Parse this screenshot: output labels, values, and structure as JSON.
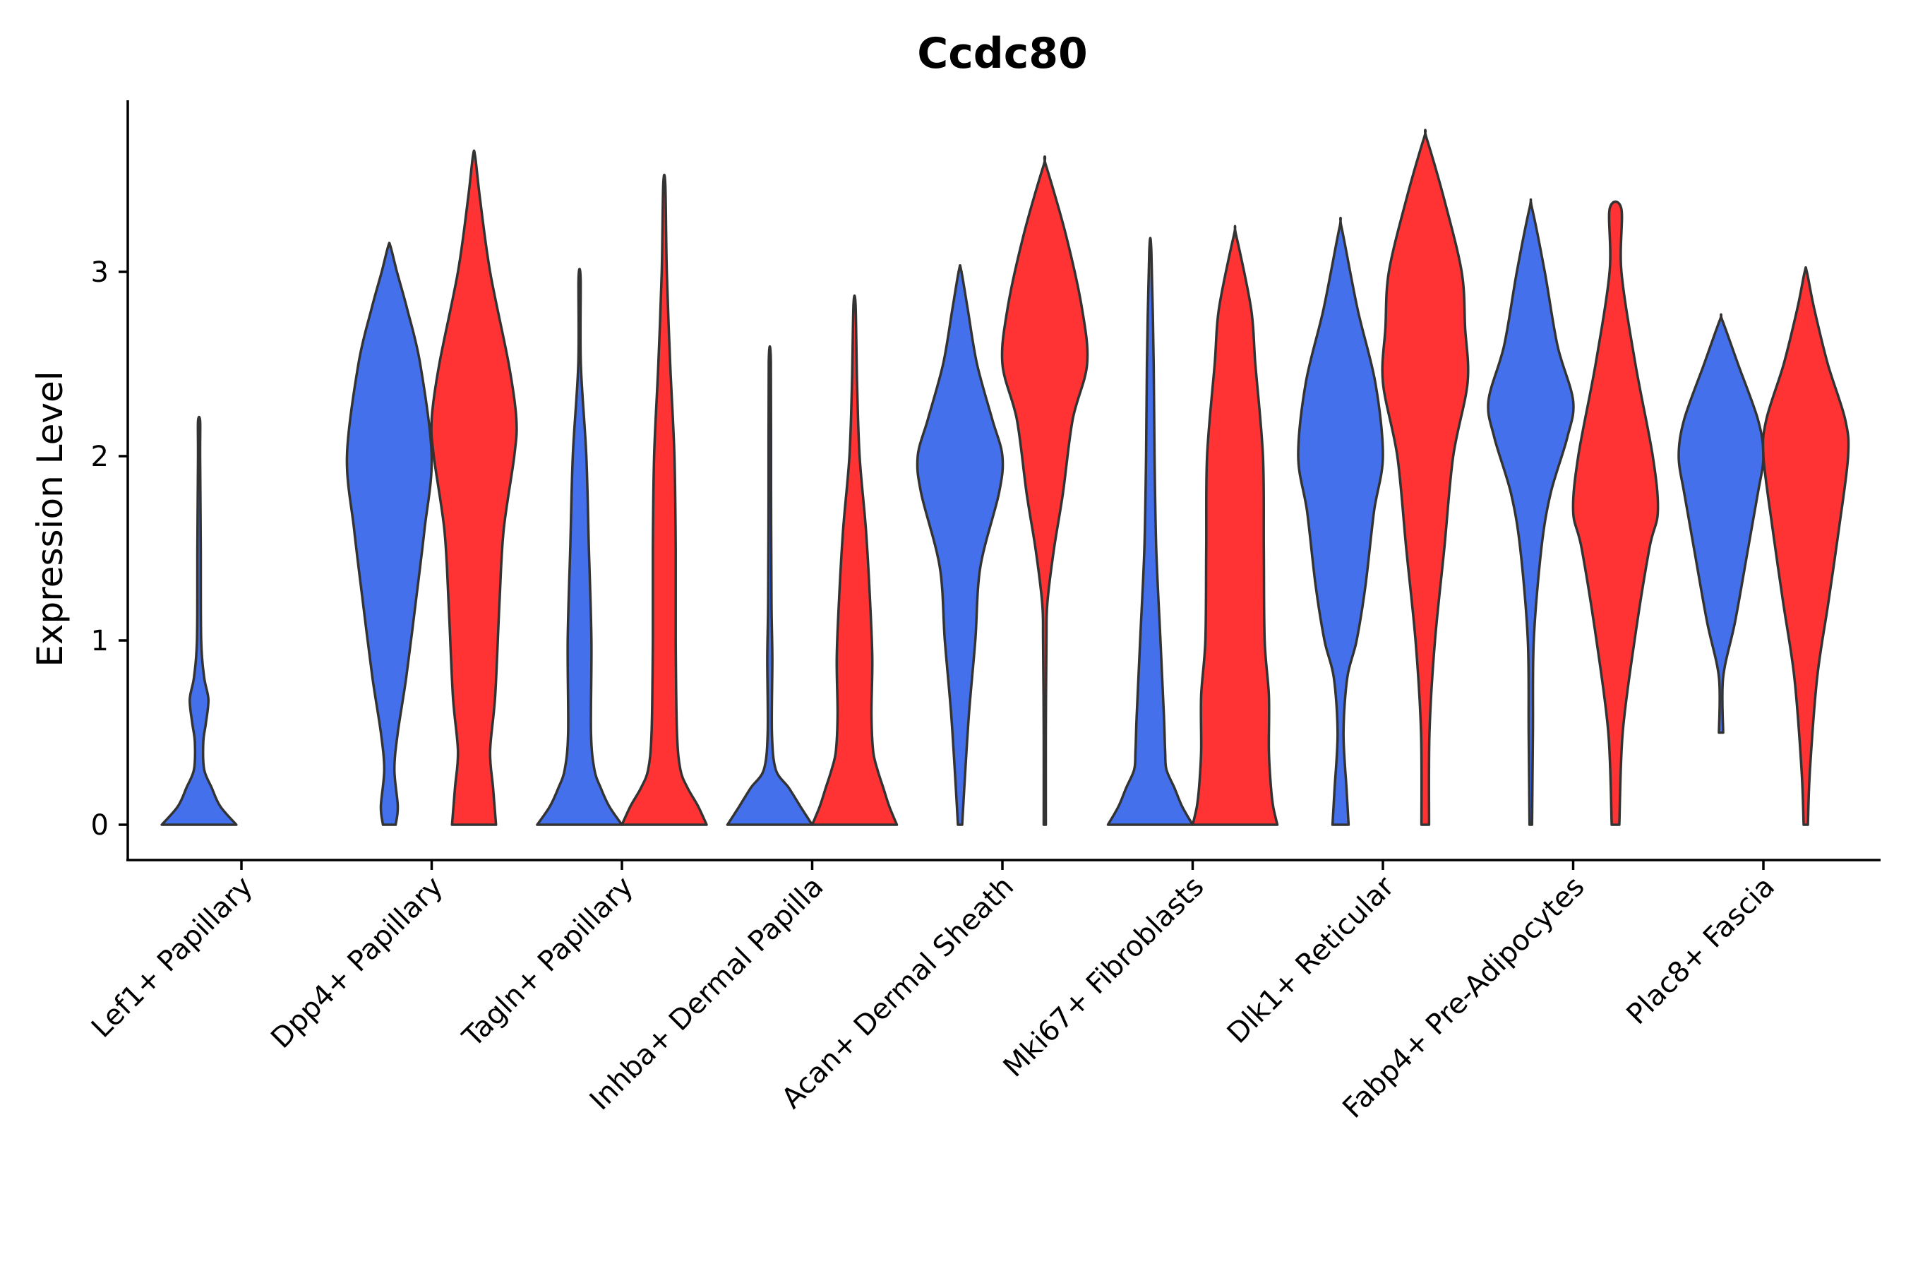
{
  "chart_data": {
    "type": "violin",
    "title": "Ccdc80",
    "ylabel": "Expression Level",
    "xlabel": "",
    "ylim": [
      -0.19,
      3.9
    ],
    "yticks": [
      0,
      1,
      2,
      3
    ],
    "colors": {
      "group1": "#4570EB",
      "group2": "#FF3333",
      "outline": "#333333"
    },
    "categories": [
      "Lef1+ Papillary",
      "Dpp4+ Papillary",
      "Tagln+ Papillary",
      "Inhba+ Dermal Papilla",
      "Acan+ Dermal Sheath",
      "Mki67+ Fibroblasts",
      "Dlk1+ Reticular",
      "Fabp4+ Pre-Adipocytes",
      "Plac8+ Fascia"
    ],
    "violins": [
      {
        "category": "Lef1+ Papillary",
        "group": "group1",
        "min": 0,
        "max": 2.19,
        "profile": [
          [
            0,
            0.88
          ],
          [
            0.1,
            0.5
          ],
          [
            0.2,
            0.3
          ],
          [
            0.3,
            0.12
          ],
          [
            0.45,
            0.1
          ],
          [
            0.55,
            0.16
          ],
          [
            0.68,
            0.22
          ],
          [
            0.8,
            0.12
          ],
          [
            1.0,
            0.05
          ],
          [
            1.5,
            0.04
          ],
          [
            2.0,
            0.015
          ],
          [
            2.19,
            0
          ]
        ]
      },
      {
        "category": "Dpp4+ Papillary",
        "group": "group1",
        "min": 0,
        "max": 3.14,
        "profile": [
          [
            0,
            0.15
          ],
          [
            0.1,
            0.2
          ],
          [
            0.3,
            0.12
          ],
          [
            0.5,
            0.2
          ],
          [
            0.8,
            0.4
          ],
          [
            1.2,
            0.62
          ],
          [
            1.6,
            0.83
          ],
          [
            2.0,
            1.0
          ],
          [
            2.5,
            0.73
          ],
          [
            2.8,
            0.42
          ],
          [
            3.0,
            0.18
          ],
          [
            3.14,
            0
          ]
        ]
      },
      {
        "category": "Dpp4+ Papillary",
        "group": "group2",
        "min": 0,
        "max": 3.63,
        "profile": [
          [
            0,
            0.52
          ],
          [
            0.2,
            0.45
          ],
          [
            0.4,
            0.38
          ],
          [
            0.7,
            0.5
          ],
          [
            1.2,
            0.6
          ],
          [
            1.6,
            0.7
          ],
          [
            2.0,
            0.95
          ],
          [
            2.2,
            1.0
          ],
          [
            2.5,
            0.82
          ],
          [
            3.0,
            0.38
          ],
          [
            3.4,
            0.14
          ],
          [
            3.63,
            0
          ]
        ]
      },
      {
        "category": "Tagln+ Papillary",
        "group": "group1",
        "min": 0,
        "max": 2.96,
        "profile": [
          [
            0,
            1.0
          ],
          [
            0.1,
            0.7
          ],
          [
            0.2,
            0.5
          ],
          [
            0.3,
            0.35
          ],
          [
            0.5,
            0.27
          ],
          [
            1.0,
            0.28
          ],
          [
            1.5,
            0.22
          ],
          [
            2.0,
            0.16
          ],
          [
            2.5,
            0.03
          ],
          [
            2.96,
            0
          ]
        ]
      },
      {
        "category": "Tagln+ Papillary",
        "group": "group2",
        "min": 0,
        "max": 3.47,
        "profile": [
          [
            0,
            1.0
          ],
          [
            0.1,
            0.8
          ],
          [
            0.2,
            0.55
          ],
          [
            0.3,
            0.38
          ],
          [
            0.5,
            0.3
          ],
          [
            1.0,
            0.27
          ],
          [
            1.5,
            0.27
          ],
          [
            2.0,
            0.24
          ],
          [
            2.5,
            0.14
          ],
          [
            3.0,
            0.06
          ],
          [
            3.47,
            0
          ]
        ]
      },
      {
        "category": "Inhba+ Dermal Papilla",
        "group": "group1",
        "min": 0,
        "max": 2.51,
        "profile": [
          [
            0,
            1.0
          ],
          [
            0.1,
            0.72
          ],
          [
            0.2,
            0.45
          ],
          [
            0.3,
            0.14
          ],
          [
            0.5,
            0.05
          ],
          [
            0.9,
            0.06
          ],
          [
            1.2,
            0.04
          ],
          [
            1.8,
            0.03
          ],
          [
            2.51,
            0
          ]
        ]
      },
      {
        "category": "Inhba+ Dermal Papilla",
        "group": "group2",
        "min": 0,
        "max": 2.82,
        "profile": [
          [
            0,
            1.0
          ],
          [
            0.1,
            0.82
          ],
          [
            0.2,
            0.68
          ],
          [
            0.3,
            0.54
          ],
          [
            0.4,
            0.44
          ],
          [
            0.6,
            0.4
          ],
          [
            0.9,
            0.42
          ],
          [
            1.2,
            0.37
          ],
          [
            1.6,
            0.27
          ],
          [
            2.0,
            0.12
          ],
          [
            2.4,
            0.06
          ],
          [
            2.82,
            0
          ]
        ]
      },
      {
        "category": "Acan+ Dermal Sheath",
        "group": "group1",
        "min": 0,
        "max": 3.01,
        "profile": [
          [
            0,
            0.05
          ],
          [
            0.2,
            0.1
          ],
          [
            0.6,
            0.21
          ],
          [
            1.0,
            0.36
          ],
          [
            1.4,
            0.48
          ],
          [
            1.8,
            0.92
          ],
          [
            2.0,
            1.0
          ],
          [
            2.2,
            0.76
          ],
          [
            2.5,
            0.4
          ],
          [
            2.8,
            0.18
          ],
          [
            3.01,
            0
          ]
        ]
      },
      {
        "category": "Acan+ Dermal Sheath",
        "group": "group2",
        "min": 0,
        "max": 3.58,
        "profile": [
          [
            0,
            0.02
          ],
          [
            0.5,
            0.02
          ],
          [
            1.0,
            0.04
          ],
          [
            1.2,
            0.06
          ],
          [
            1.5,
            0.22
          ],
          [
            1.8,
            0.43
          ],
          [
            2.2,
            0.66
          ],
          [
            2.5,
            1.0
          ],
          [
            2.8,
            0.88
          ],
          [
            3.2,
            0.5
          ],
          [
            3.58,
            0
          ]
        ]
      },
      {
        "category": "Mki67+ Fibroblasts",
        "group": "group1",
        "min": 0,
        "max": 3.11,
        "profile": [
          [
            0,
            1.0
          ],
          [
            0.1,
            0.75
          ],
          [
            0.2,
            0.57
          ],
          [
            0.3,
            0.38
          ],
          [
            0.4,
            0.35
          ],
          [
            0.6,
            0.32
          ],
          [
            1.0,
            0.24
          ],
          [
            1.5,
            0.14
          ],
          [
            2.0,
            0.1
          ],
          [
            2.5,
            0.08
          ],
          [
            3.11,
            0
          ]
        ]
      },
      {
        "category": "Mki67+ Fibroblasts",
        "group": "group2",
        "min": 0,
        "max": 3.2,
        "profile": [
          [
            0,
            1.0
          ],
          [
            0.1,
            0.9
          ],
          [
            0.2,
            0.85
          ],
          [
            0.4,
            0.8
          ],
          [
            0.7,
            0.8
          ],
          [
            1.0,
            0.7
          ],
          [
            1.5,
            0.68
          ],
          [
            2.0,
            0.66
          ],
          [
            2.5,
            0.48
          ],
          [
            2.8,
            0.38
          ],
          [
            3.2,
            0
          ]
        ]
      },
      {
        "category": "Dlk1+ Reticular",
        "group": "group1",
        "min": 0,
        "max": 3.24,
        "profile": [
          [
            0,
            0.19
          ],
          [
            0.2,
            0.14
          ],
          [
            0.5,
            0.07
          ],
          [
            0.8,
            0.16
          ],
          [
            1.0,
            0.38
          ],
          [
            1.3,
            0.59
          ],
          [
            1.7,
            0.79
          ],
          [
            2.0,
            1.0
          ],
          [
            2.4,
            0.82
          ],
          [
            2.8,
            0.4
          ],
          [
            3.24,
            0
          ]
        ]
      },
      {
        "category": "Dlk1+ Reticular",
        "group": "group2",
        "min": 0,
        "max": 3.73,
        "profile": [
          [
            0,
            0.09
          ],
          [
            0.5,
            0.1
          ],
          [
            1.0,
            0.23
          ],
          [
            1.5,
            0.45
          ],
          [
            2.0,
            0.66
          ],
          [
            2.4,
            1.0
          ],
          [
            2.7,
            0.94
          ],
          [
            3.0,
            0.86
          ],
          [
            3.4,
            0.44
          ],
          [
            3.73,
            0
          ]
        ]
      },
      {
        "category": "Fabp4+ Pre-Adipocytes",
        "group": "group1",
        "min": 0,
        "max": 3.35,
        "profile": [
          [
            0,
            0.03
          ],
          [
            0.5,
            0.05
          ],
          [
            1.0,
            0.07
          ],
          [
            1.5,
            0.25
          ],
          [
            1.8,
            0.47
          ],
          [
            2.1,
            0.86
          ],
          [
            2.3,
            1.0
          ],
          [
            2.6,
            0.63
          ],
          [
            3.0,
            0.33
          ],
          [
            3.35,
            0
          ]
        ]
      },
      {
        "category": "Fabp4+ Pre-Adipocytes",
        "group": "group2",
        "min": 0,
        "max": 3.34,
        "profile": [
          [
            0,
            0.09
          ],
          [
            0.5,
            0.17
          ],
          [
            1.0,
            0.45
          ],
          [
            1.5,
            0.8
          ],
          [
            1.7,
            1.0
          ],
          [
            2.0,
            0.88
          ],
          [
            2.5,
            0.47
          ],
          [
            3.0,
            0.14
          ],
          [
            3.34,
            0.14
          ]
        ]
      },
      {
        "category": "Plac8+ Fascia",
        "group": "group1",
        "min": 0.5,
        "max": 2.74,
        "profile": [
          [
            0.5,
            0.05
          ],
          [
            0.8,
            0.05
          ],
          [
            1.1,
            0.33
          ],
          [
            1.5,
            0.64
          ],
          [
            1.8,
            0.87
          ],
          [
            2.0,
            1.0
          ],
          [
            2.2,
            0.87
          ],
          [
            2.5,
            0.4
          ],
          [
            2.74,
            0
          ]
        ]
      },
      {
        "category": "Plac8+ Fascia",
        "group": "group2",
        "min": 0,
        "max": 3.0,
        "profile": [
          [
            0,
            0.05
          ],
          [
            0.3,
            0.1
          ],
          [
            0.8,
            0.27
          ],
          [
            1.2,
            0.53
          ],
          [
            1.6,
            0.78
          ],
          [
            2.0,
            1.0
          ],
          [
            2.2,
            0.93
          ],
          [
            2.5,
            0.52
          ],
          [
            2.8,
            0.2
          ],
          [
            3.0,
            0
          ]
        ]
      }
    ]
  }
}
